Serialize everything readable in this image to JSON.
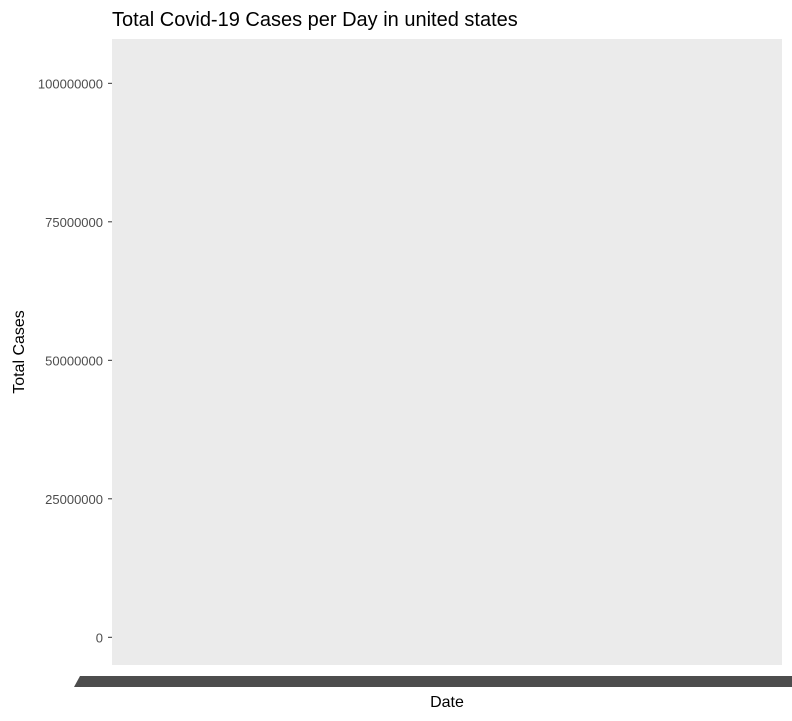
{
  "chart_data": {
    "type": "line",
    "title": "Total Covid-19 Cases per Day in united states",
    "xlabel": "Date",
    "ylabel": "Total Cases",
    "ylim": [
      -5000000,
      108000000
    ],
    "y_ticks": [
      0,
      25000000,
      50000000,
      75000000,
      100000000
    ],
    "y_tick_labels": [
      "0",
      "25000000",
      "50000000",
      "75000000",
      "100000000"
    ],
    "x_tick_labels_overlapping": true,
    "grid": false,
    "legend": "none",
    "series": [],
    "colors": {
      "panel_background": "#ebebeb",
      "tick_label": "#4d4d4d",
      "overlapping_x_labels": "#4d4d4d",
      "text": "#000000"
    }
  }
}
